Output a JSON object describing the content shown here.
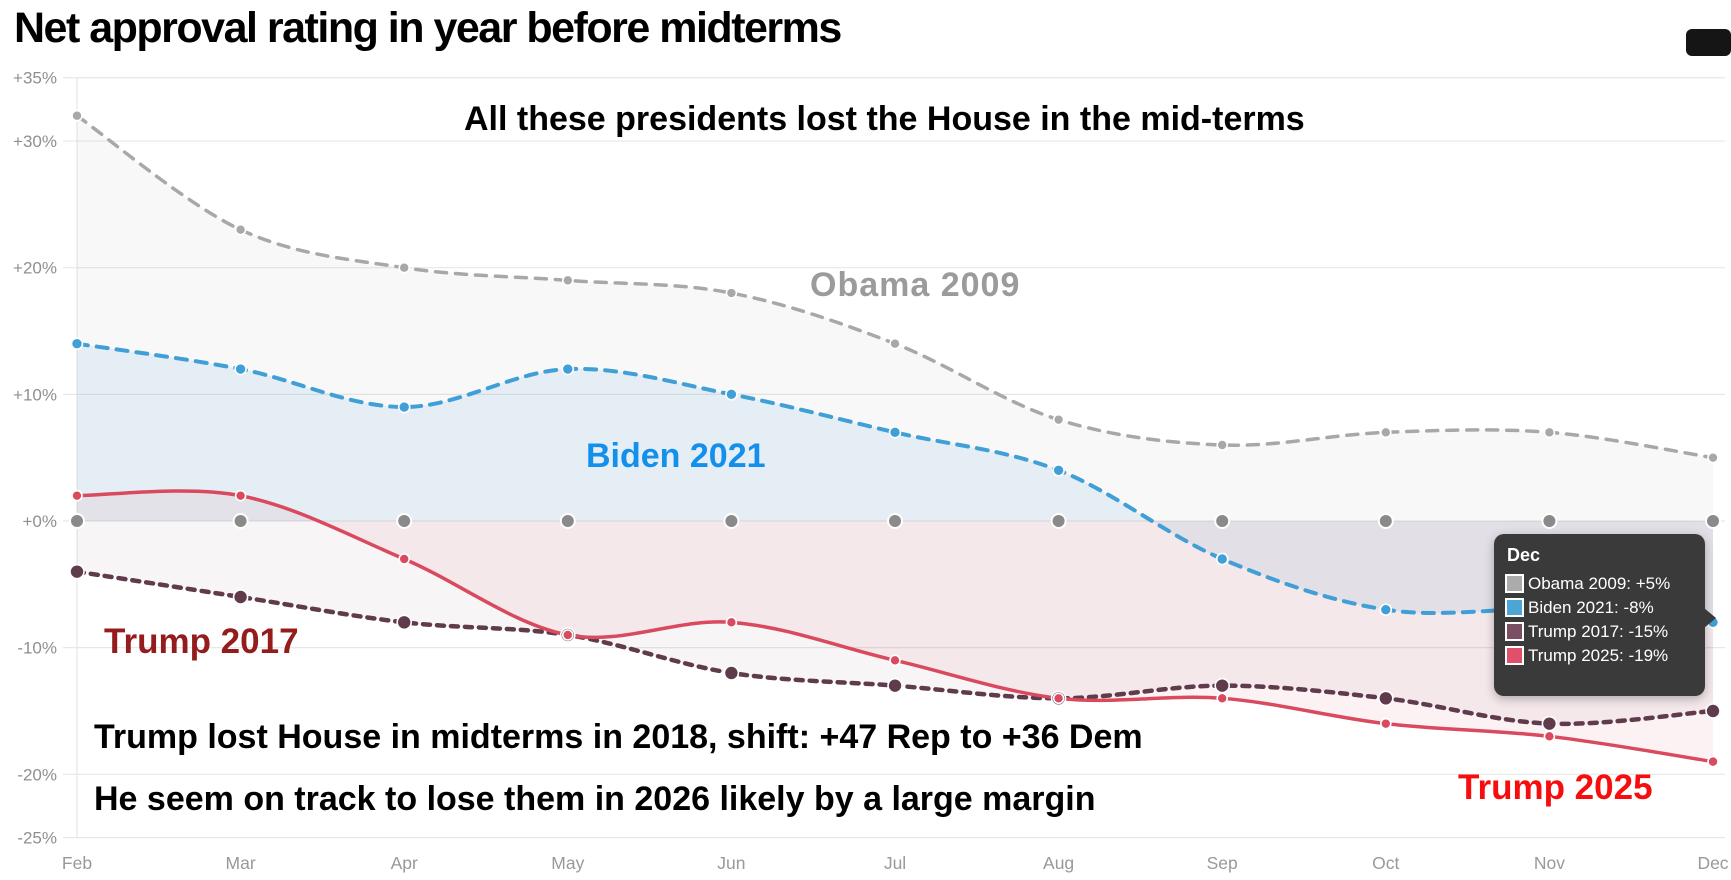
{
  "title": "Net approval rating in year before midterms",
  "annotations": {
    "headline": {
      "text": "All these presidents lost the House in the mid-terms",
      "color": "#000000"
    },
    "obama_label": {
      "text": "Obama 2009",
      "color": "#9b9b9b"
    },
    "biden_label": {
      "text": "Biden 2021",
      "color": "#138fec"
    },
    "trump2017_label": {
      "text": "Trump 2017",
      "color": "#941c1c"
    },
    "trump2025_label": {
      "text": "Trump 2025",
      "color": "#f70d0d"
    },
    "note_line1": {
      "text": "Trump lost House in midterms in 2018, shift: +47 Rep to +36 Dem",
      "color": "#000000"
    },
    "note_line2": {
      "text": "He seem on track to lose them in 2026 likely by a large margin",
      "color": "#000000"
    }
  },
  "tooltip": {
    "title": "Dec",
    "rows": [
      {
        "label": "Obama 2009: +5%",
        "color": "#ababab"
      },
      {
        "label": "Biden 2021: -8%",
        "color": "#4ba6d6"
      },
      {
        "label": "Trump 2017: -15%",
        "color": "#7b4f63"
      },
      {
        "label": "Trump 2025: -19%",
        "color": "#e0506a"
      }
    ]
  },
  "chart_data": {
    "type": "line",
    "categories": [
      "Feb",
      "Mar",
      "Apr",
      "May",
      "Jun",
      "Jul",
      "Aug",
      "Sep",
      "Oct",
      "Nov",
      "Dec"
    ],
    "y_ticks": [
      {
        "label": "+35%",
        "value": 35
      },
      {
        "label": "+30%",
        "value": 30
      },
      {
        "label": "+20%",
        "value": 20
      },
      {
        "label": "+10%",
        "value": 10
      },
      {
        "label": "+0%",
        "value": 0
      },
      {
        "label": "-10%",
        "value": -10
      },
      {
        "label": "-20%",
        "value": -20
      },
      {
        "label": "-25%",
        "value": -25
      }
    ],
    "ylim": [
      -25,
      35
    ],
    "grid": true,
    "legend_position": "tooltip-overlay",
    "zero_line_dots": true,
    "zero_dot_color": "#8a8a8a",
    "axis_label_color": "#999999",
    "grid_color": "#e7e7e7",
    "series": [
      {
        "name": "Obama 2009",
        "style": "dashed",
        "color": "#a8a8a8",
        "fill": "rgba(170,170,170,0.085)",
        "dash": "11 9",
        "width": 3.5,
        "dot_r": 5,
        "values": [
          32,
          23,
          20,
          19,
          18,
          14,
          8,
          6,
          7,
          7,
          5
        ]
      },
      {
        "name": "Biden 2021",
        "style": "dashed",
        "color": "#3f9fd6",
        "fill": "rgba(63,159,214,0.10)",
        "dash": "11 9",
        "width": 4,
        "dot_r": 5.5,
        "values": [
          14,
          12,
          9,
          12,
          10,
          7,
          4,
          -3,
          -7,
          -7,
          -8
        ]
      },
      {
        "name": "Trump 2017",
        "style": "dashed",
        "color": "#5f3b4c",
        "fill": "rgba(107,66,86,0.05)",
        "dash": "7 7",
        "width": 4.5,
        "dot_r": 7,
        "values": [
          -4,
          -6,
          -8,
          -9,
          -12,
          -13,
          -14,
          -13,
          -14,
          -16,
          -15
        ]
      },
      {
        "name": "Trump 2025",
        "style": "solid",
        "color": "#d94a5f",
        "fill": "rgba(217,74,95,0.075)",
        "dash": "",
        "width": 3.5,
        "dot_r": 5,
        "values": [
          2,
          2,
          -3,
          -9,
          -8,
          -11,
          -14,
          -14,
          -16,
          -17,
          -19
        ]
      }
    ]
  }
}
